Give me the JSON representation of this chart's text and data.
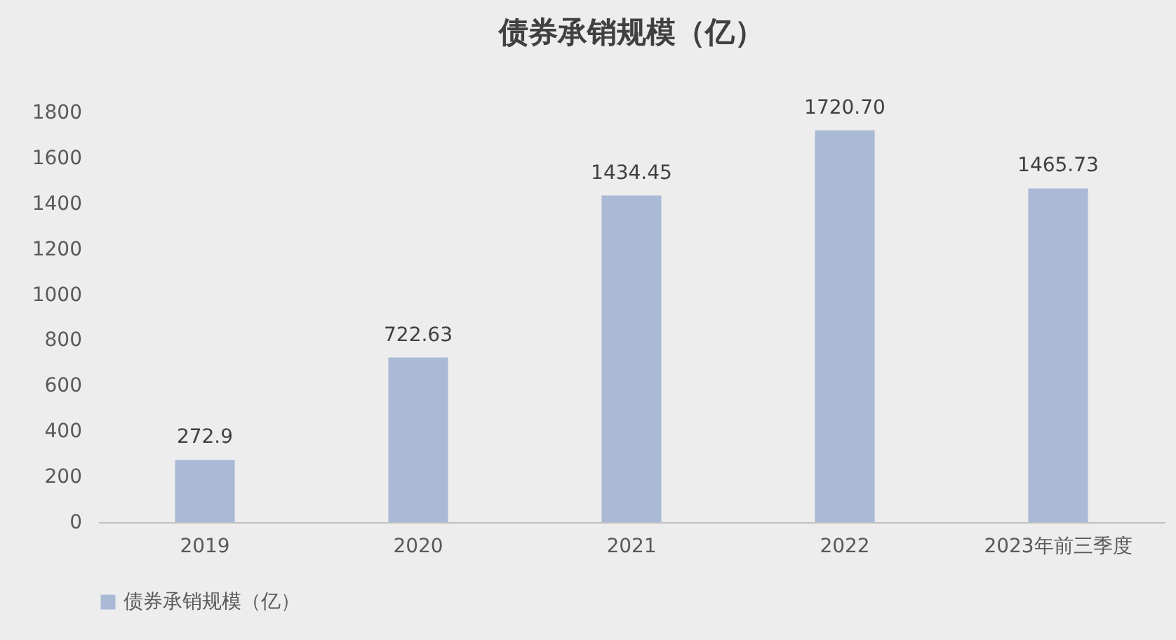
{
  "chart_data": {
    "type": "bar",
    "title": "债券承销规模（亿）",
    "categories": [
      "2019",
      "2020",
      "2021",
      "2022",
      "2023年前三季度"
    ],
    "series": [
      {
        "name": "债券承销规模（亿）",
        "color": "#a9b9d6",
        "values": [
          272.9,
          722.63,
          1434.45,
          1720.7,
          1465.73
        ]
      }
    ],
    "value_labels": [
      "272.9",
      "722.63",
      "1434.45",
      "1720.70",
      "1465.73"
    ],
    "ylim": [
      0,
      1800
    ],
    "yticks": [
      0,
      200,
      400,
      600,
      800,
      1000,
      1200,
      1400,
      1600,
      1800
    ],
    "grid": false,
    "legend": "bottom"
  }
}
